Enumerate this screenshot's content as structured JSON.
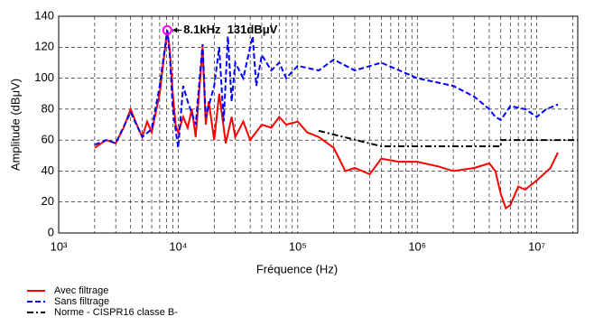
{
  "chart_data": {
    "type": "line",
    "xlabel": "Fréquence (Hz)",
    "ylabel": "Amplitude (dBμV)",
    "xscale": "log",
    "grid": true,
    "xlim": [
      1000,
      22000000
    ],
    "ylim": [
      0,
      140
    ],
    "xticks": [
      {
        "value": 1000,
        "label": "10³"
      },
      {
        "value": 10000,
        "label": "10⁴"
      },
      {
        "value": 100000,
        "label": "10⁵"
      },
      {
        "value": 1000000,
        "label": "10⁶"
      },
      {
        "value": 10000000,
        "label": "10⁷"
      }
    ],
    "xminorticks": [
      2000,
      3000,
      4000,
      5000,
      6000,
      7000,
      8000,
      9000,
      20000,
      30000,
      40000,
      50000,
      60000,
      70000,
      80000,
      90000,
      200000,
      300000,
      400000,
      500000,
      600000,
      700000,
      800000,
      900000,
      2000000,
      3000000,
      4000000,
      5000000,
      6000000,
      7000000,
      8000000,
      9000000,
      20000000
    ],
    "yticks": [
      0,
      20,
      40,
      60,
      80,
      100,
      120,
      140
    ],
    "series": [
      {
        "name": "Avec filtrage",
        "color": "#ff0000",
        "dash": "solid",
        "x": [
          2000,
          2500,
          3000,
          3500,
          4000,
          4500,
          5000,
          5500,
          6000,
          7000,
          7500,
          8100,
          8500,
          9000,
          9500,
          10000,
          11000,
          12000,
          13000,
          14000,
          16000,
          17000,
          18000,
          20000,
          22000,
          25000,
          28000,
          30000,
          35000,
          40000,
          50000,
          60000,
          70000,
          80000,
          100000,
          120000,
          150000,
          200000,
          250000,
          300000,
          400000,
          500000,
          700000,
          1000000,
          1500000,
          2000000,
          3000000,
          4000000,
          4500000,
          5000000,
          5500000,
          6000000,
          7000000,
          8000000,
          10000000,
          13000000,
          15000000
        ],
        "values": [
          55,
          60,
          58,
          68,
          80,
          70,
          62,
          72,
          65,
          90,
          110,
          131,
          118,
          90,
          70,
          65,
          75,
          68,
          80,
          62,
          120,
          70,
          85,
          60,
          90,
          58,
          75,
          62,
          72,
          60,
          70,
          68,
          75,
          70,
          72,
          65,
          62,
          55,
          40,
          42,
          38,
          48,
          46,
          46,
          43,
          40,
          42,
          45,
          40,
          25,
          16,
          18,
          30,
          28,
          34,
          42,
          52
        ]
      },
      {
        "name": "Sans filtrage",
        "color": "#0000ff",
        "dash": "dashed",
        "x": [
          2000,
          2500,
          3000,
          4000,
          5000,
          6000,
          7000,
          8100,
          8500,
          9000,
          10000,
          11000,
          12000,
          14000,
          16000,
          17000,
          20000,
          22000,
          24000,
          26000,
          28000,
          30000,
          35000,
          40000,
          42000,
          45000,
          50000,
          60000,
          70000,
          80000,
          100000,
          150000,
          200000,
          300000,
          500000,
          1000000,
          2000000,
          3000000,
          4000000,
          4500000,
          5000000,
          6000000,
          8000000,
          10000000,
          12000000,
          15000000
        ],
        "values": [
          57,
          60,
          58,
          78,
          62,
          67,
          95,
          131,
          115,
          80,
          55,
          95,
          85,
          70,
          122,
          75,
          95,
          120,
          72,
          127,
          85,
          110,
          100,
          120,
          127,
          95,
          115,
          105,
          110,
          100,
          108,
          105,
          112,
          105,
          110,
          100,
          95,
          88,
          80,
          75,
          73,
          82,
          80,
          75,
          80,
          83
        ]
      },
      {
        "name": "Norme - CISPR16 classe B-",
        "color": "#000000",
        "dash": "dashdot",
        "x": [
          150000,
          500000,
          5000000,
          5000000,
          22000000
        ],
        "values": [
          66,
          56,
          56,
          60,
          60
        ]
      }
    ],
    "annotation": {
      "text": "8.1kHz  131dBμV",
      "x": 8100,
      "y": 131
    }
  }
}
